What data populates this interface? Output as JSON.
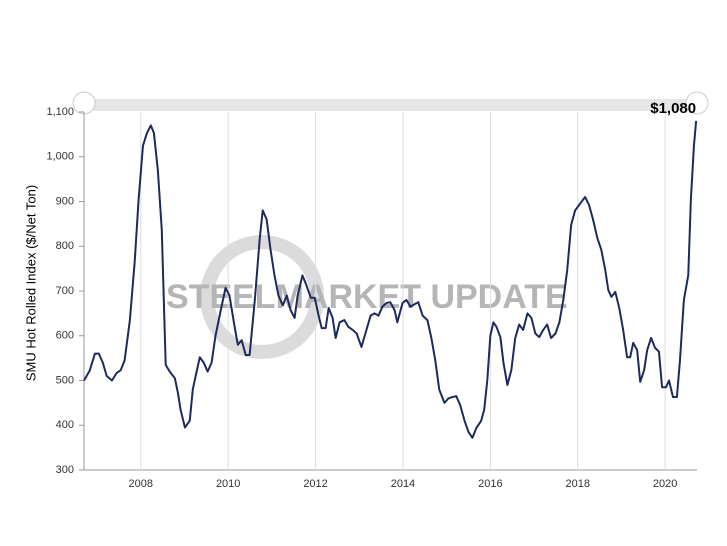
{
  "chart_data": {
    "type": "line",
    "y_label": "SMU Hot Rolled Index ($/Net Ton)",
    "watermark": "STEELMARKET UPDATE",
    "xlim": [
      2006.7,
      2020.73
    ],
    "xticks": [
      2008,
      2010,
      2012,
      2014,
      2016,
      2018,
      2020
    ],
    "ylim": [
      300,
      1100
    ],
    "yticks": [
      300,
      400,
      500,
      600,
      700,
      800,
      900,
      {
        "value": 1000,
        "label": "1,000"
      },
      {
        "value": 1100,
        "label": "1,100"
      }
    ],
    "grid": true,
    "x": [
      2006.7,
      2006.83,
      2006.95,
      2007.04,
      2007.13,
      2007.22,
      2007.34,
      2007.45,
      2007.54,
      2007.63,
      2007.75,
      2007.86,
      2007.95,
      2008.05,
      2008.14,
      2008.23,
      2008.3,
      2008.39,
      2008.48,
      2008.57,
      2008.66,
      2008.78,
      2008.85,
      2008.91,
      2009.01,
      2009.12,
      2009.19,
      2009.26,
      2009.35,
      2009.44,
      2009.53,
      2009.62,
      2009.71,
      2009.83,
      2009.94,
      2010.03,
      2010.13,
      2010.22,
      2010.31,
      2010.4,
      2010.49,
      2010.61,
      2010.72,
      2010.79,
      2010.88,
      2010.97,
      2011.06,
      2011.15,
      2011.25,
      2011.34,
      2011.43,
      2011.52,
      2011.59,
      2011.7,
      2011.79,
      2011.89,
      2011.98,
      2012.07,
      2012.14,
      2012.23,
      2012.3,
      2012.39,
      2012.46,
      2012.55,
      2012.66,
      2012.75,
      2012.85,
      2012.94,
      2013.05,
      2013.14,
      2013.26,
      2013.35,
      2013.44,
      2013.53,
      2013.62,
      2013.71,
      2013.81,
      2013.87,
      2013.99,
      2014.08,
      2014.17,
      2014.26,
      2014.35,
      2014.45,
      2014.56,
      2014.65,
      2014.74,
      2014.83,
      2014.95,
      2015.04,
      2015.13,
      2015.22,
      2015.31,
      2015.41,
      2015.5,
      2015.59,
      2015.68,
      2015.79,
      2015.86,
      2015.93,
      2016.0,
      2016.07,
      2016.14,
      2016.23,
      2016.3,
      2016.39,
      2016.48,
      2016.57,
      2016.66,
      2016.75,
      2016.85,
      2016.94,
      2017.03,
      2017.12,
      2017.21,
      2017.3,
      2017.39,
      2017.49,
      2017.58,
      2017.67,
      2017.76,
      2017.85,
      2017.94,
      2018.03,
      2018.13,
      2018.17,
      2018.26,
      2018.35,
      2018.45,
      2018.54,
      2018.63,
      2018.7,
      2018.77,
      2018.86,
      2018.95,
      2019.04,
      2019.13,
      2019.2,
      2019.27,
      2019.36,
      2019.43,
      2019.52,
      2019.59,
      2019.68,
      2019.77,
      2019.86,
      2019.93,
      2020.02,
      2020.09,
      2020.18,
      2020.27,
      2020.34,
      2020.43,
      2020.53,
      2020.59,
      2020.66,
      2020.71
    ],
    "series": [
      {
        "color": "#1f2a5c",
        "values": [
          500,
          522,
          560,
          560,
          540,
          510,
          500,
          517,
          523,
          545,
          635,
          765,
          905,
          1025,
          1053,
          1070,
          1053,
          970,
          837,
          535,
          520,
          505,
          472,
          435,
          395,
          410,
          480,
          512,
          552,
          540,
          520,
          540,
          600,
          657,
          707,
          690,
          630,
          580,
          590,
          557,
          557,
          680,
          815,
          880,
          860,
          792,
          735,
          690,
          668,
          690,
          657,
          640,
          690,
          735,
          713,
          685,
          685,
          645,
          617,
          617,
          662,
          640,
          595,
          630,
          635,
          620,
          613,
          605,
          575,
          605,
          645,
          650,
          645,
          665,
          673,
          675,
          657,
          630,
          673,
          680,
          665,
          670,
          675,
          645,
          635,
          595,
          545,
          480,
          450,
          460,
          463,
          465,
          445,
          410,
          385,
          372,
          394,
          410,
          435,
          500,
          600,
          630,
          620,
          597,
          540,
          490,
          523,
          595,
          625,
          613,
          650,
          640,
          605,
          597,
          613,
          625,
          595,
          605,
          630,
          680,
          747,
          848,
          880,
          892,
          905,
          910,
          892,
          860,
          818,
          792,
          747,
          702,
          687,
          698,
          662,
          613,
          552,
          552,
          584,
          568,
          497,
          523,
          568,
          595,
          573,
          564,
          485,
          485,
          500,
          463,
          463,
          545,
          680,
          735,
          905,
          1025,
          1080
        ],
        "value_labels": [
          null,
          null,
          null,
          null,
          null,
          null,
          null,
          null,
          null,
          null,
          null,
          null,
          null,
          null,
          null,
          null,
          null,
          null,
          null,
          null,
          null,
          null,
          null,
          null,
          null,
          null,
          null,
          null,
          null,
          null,
          null,
          null,
          null,
          null,
          null,
          null,
          null,
          null,
          null,
          null,
          null,
          null,
          null,
          null,
          null,
          null,
          null,
          null,
          null,
          null,
          null,
          null,
          null,
          null,
          null,
          null,
          null,
          null,
          null,
          null,
          null,
          null,
          null,
          null,
          null,
          null,
          null,
          null,
          null,
          null,
          null,
          null,
          null,
          null,
          null,
          null,
          null,
          null,
          null,
          null,
          null,
          null,
          null,
          null,
          null,
          null,
          null,
          null,
          null,
          null,
          null,
          null,
          null,
          null,
          null,
          null,
          null,
          null,
          null,
          null,
          null,
          null,
          null,
          null,
          null,
          null,
          null,
          null,
          null,
          null,
          null,
          null,
          null,
          null,
          null,
          null,
          null,
          null,
          null,
          null,
          null,
          null,
          null,
          null,
          null,
          null,
          null,
          null,
          null,
          null,
          null,
          null,
          null,
          null,
          null,
          null,
          null,
          null,
          null,
          null,
          null,
          null,
          null,
          null,
          null,
          null,
          null,
          null,
          null,
          null,
          null,
          null,
          null,
          null,
          null,
          null,
          "$1,080"
        ]
      }
    ]
  }
}
